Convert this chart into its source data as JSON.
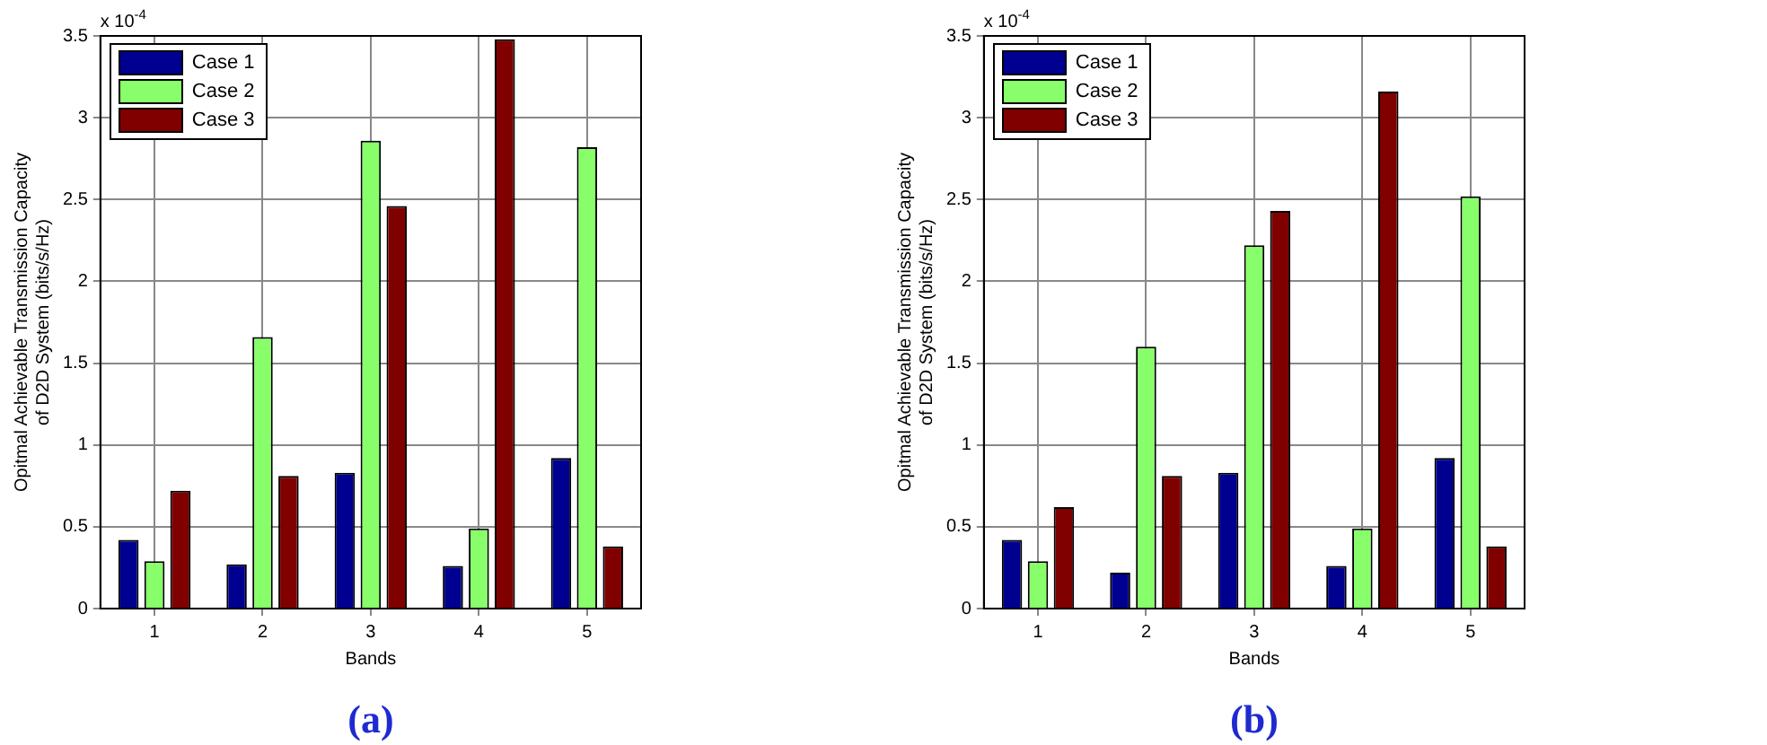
{
  "chart_data": [
    {
      "type": "bar",
      "xlabel": "Bands",
      "ylabel": "Opitmal Achievable Transmission Capacity\nof D2D System (bits/s/Hz)",
      "categories": [
        "1",
        "2",
        "3",
        "4",
        "5"
      ],
      "series": [
        {
          "name": "Case 1",
          "color": "#000090",
          "values": [
            0.42,
            0.27,
            0.83,
            0.26,
            0.92
          ]
        },
        {
          "name": "Case 2",
          "color": "#88ff6a",
          "values": [
            0.29,
            1.66,
            2.86,
            0.49,
            2.82
          ]
        },
        {
          "name": "Case 3",
          "color": "#800000",
          "values": [
            0.72,
            0.81,
            2.46,
            3.48,
            0.38
          ]
        }
      ],
      "ylim": [
        0,
        3.5
      ],
      "yticks": [
        0,
        0.5,
        1,
        1.5,
        2,
        2.5,
        3,
        3.5
      ],
      "grid": true,
      "legend": "top left",
      "annotations": [
        "x 10$^{-4}$",
        "(a)"
      ]
    },
    {
      "type": "bar",
      "xlabel": "Bands",
      "ylabel": "Opitmal Achievable Transmission Capacity\nof D2D System (bits/s/Hz)",
      "categories": [
        "1",
        "2",
        "3",
        "4",
        "5"
      ],
      "series": [
        {
          "name": "Case 1",
          "color": "#000090",
          "values": [
            0.42,
            0.22,
            0.83,
            0.26,
            0.92
          ]
        },
        {
          "name": "Case 2",
          "color": "#88ff6a",
          "values": [
            0.29,
            1.6,
            2.22,
            0.49,
            2.52
          ]
        },
        {
          "name": "Case 3",
          "color": "#800000",
          "values": [
            0.62,
            0.81,
            2.43,
            3.16,
            0.38
          ]
        }
      ],
      "ylim": [
        0,
        3.5
      ],
      "yticks": [
        0,
        0.5,
        1,
        1.5,
        2,
        2.5,
        3,
        3.5
      ],
      "grid": true,
      "legend": "top left",
      "annotations": [
        "x 10$^{-4}$",
        "(b)"
      ]
    }
  ]
}
